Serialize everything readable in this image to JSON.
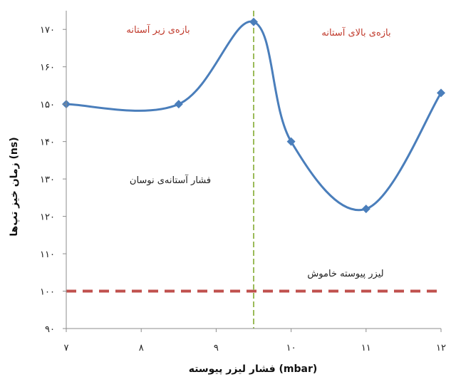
{
  "chart_data": {
    "type": "line",
    "xlabel": "فشار لیزر پیوسته (mbar)",
    "ylabel": "زمان خیز تپ‌ها (ns)",
    "xlim": [
      7,
      12
    ],
    "ylim": [
      90,
      175
    ],
    "x_ticks": [
      7,
      8,
      9,
      10,
      11,
      12
    ],
    "x_tick_labels": [
      "۷",
      "۸",
      "۹",
      "۱۰",
      "۱۱",
      "۱۲"
    ],
    "y_ticks": [
      90,
      100,
      110,
      120,
      130,
      140,
      150,
      160,
      170
    ],
    "y_tick_labels": [
      "۹۰",
      "۱۰۰",
      "۱۱۰",
      "۱۲۰",
      "۱۳۰",
      "۱۴۰",
      "۱۵۰",
      "۱۶۰",
      "۱۷۰"
    ],
    "grid": false,
    "series": [
      {
        "color": "#4a7ebb",
        "marker": "diamond",
        "smooth": true,
        "x": [
          7,
          8.5,
          9.5,
          10,
          11,
          12
        ],
        "y": [
          150,
          150,
          172,
          140,
          122,
          153
        ]
      }
    ],
    "reference_lines": [
      {
        "orientation": "horizontal",
        "value": 100,
        "color": "#c0504d",
        "style": "dashed",
        "label": "لیزر پیوسته خاموش"
      },
      {
        "orientation": "vertical",
        "value": 9.5,
        "color": "#9bbb59",
        "style": "dashed",
        "label": "فشار آستانه‌ی نوسان"
      }
    ],
    "annotations": [
      {
        "text": "بازه‌ی زیر آستانه",
        "color": "#c0392b"
      },
      {
        "text": "بازه‌ی بالای آستانه",
        "color": "#c0392b"
      }
    ]
  }
}
